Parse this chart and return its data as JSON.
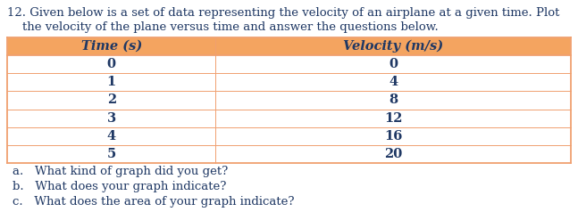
{
  "title_line1": "12. Given below is a set of data representing the velocity of an airplane at a given time. Plot",
  "title_line2": "    the velocity of the plane versus time and answer the questions below.",
  "col1_header": "Time (s)",
  "col2_header": "Velocity (m/s)",
  "time": [
    0,
    1,
    2,
    3,
    4,
    5
  ],
  "velocity": [
    0,
    4,
    8,
    12,
    16,
    20
  ],
  "questions": [
    "a.   What kind of graph did you get?",
    "b.   What does your graph indicate?",
    "c.   What does the area of your graph indicate?"
  ],
  "bg_color": "#ffffff",
  "text_color": "#1f3864",
  "header_row_color": "#f4a460",
  "table_line_color": "#f0a070",
  "font_size_title": 9.5,
  "font_size_header": 10.5,
  "font_size_table": 10.5,
  "font_size_questions": 9.5,
  "fig_width": 6.47,
  "fig_height": 2.38,
  "dpi": 100
}
